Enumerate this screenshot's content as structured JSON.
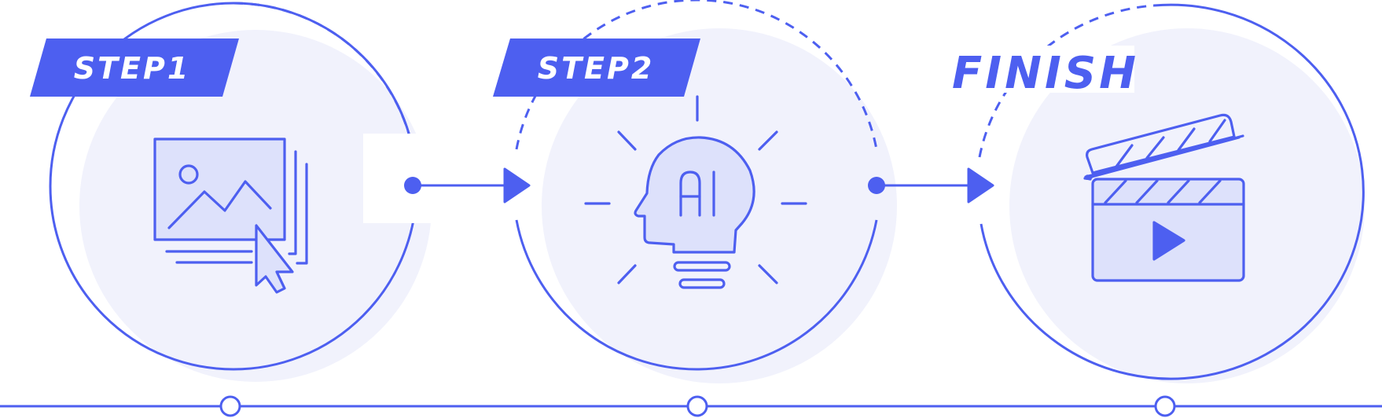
{
  "colors": {
    "accent": "#4d5ff0",
    "fill_light": "#f1f2fc",
    "icon_fill": "#dde1fb",
    "background": "#ffffff"
  },
  "steps": [
    {
      "label": "STEP1",
      "icon": "image-upload-cursor-icon"
    },
    {
      "label": "STEP2",
      "icon": "ai-lightbulb-head-icon"
    },
    {
      "label": "FINISH",
      "icon": "video-clapperboard-icon"
    }
  ]
}
